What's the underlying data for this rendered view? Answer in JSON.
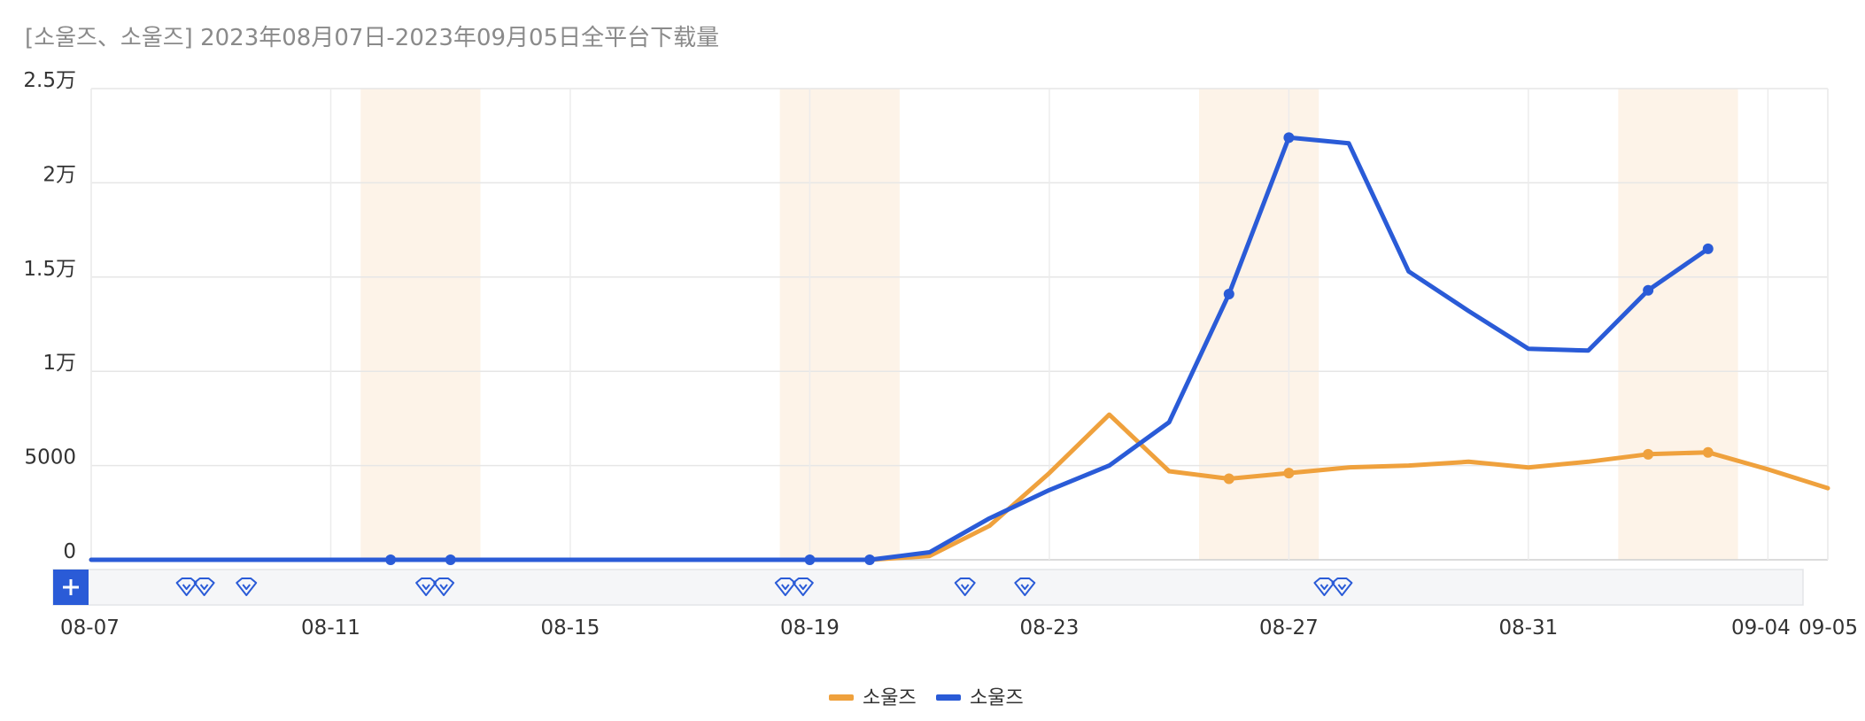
{
  "chart_data": {
    "type": "line",
    "title": "[소울즈、소울즈] 2023年08月07日-2023年09月05日全平台下载量",
    "xlabel": "",
    "ylabel": "",
    "x": [
      "08-07",
      "08-08",
      "08-09",
      "08-10",
      "08-11",
      "08-12",
      "08-13",
      "08-14",
      "08-15",
      "08-16",
      "08-17",
      "08-18",
      "08-19",
      "08-20",
      "08-21",
      "08-22",
      "08-23",
      "08-24",
      "08-25",
      "08-26",
      "08-27",
      "08-28",
      "08-29",
      "08-30",
      "08-31",
      "09-01",
      "09-02",
      "09-03",
      "09-04",
      "09-05"
    ],
    "x_tick_labels": [
      "08-07",
      "08-11",
      "08-15",
      "08-19",
      "08-23",
      "08-27",
      "08-31",
      "09-04",
      "09-05"
    ],
    "y_tick_labels": [
      "0",
      "5000",
      "1万",
      "1.5万",
      "2万",
      "2.5万"
    ],
    "y_tick_values": [
      0,
      5000,
      10000,
      15000,
      20000,
      25000
    ],
    "ylim": [
      0,
      25000
    ],
    "grid": true,
    "legend_position": "bottom-center",
    "weekend_bands": [
      [
        "08-12",
        "08-13"
      ],
      [
        "08-19",
        "08-20"
      ],
      [
        "08-26",
        "08-27"
      ],
      [
        "09-02",
        "09-03"
      ]
    ],
    "event_markers": [
      "08-08",
      "08-08",
      "08-09",
      "08-12",
      "08-12",
      "08-18",
      "08-18",
      "08-21",
      "08-22",
      "08-27",
      "08-27"
    ],
    "series": [
      {
        "name": "소울즈",
        "color": "#EFA13D",
        "values": [
          0,
          0,
          0,
          0,
          0,
          0,
          0,
          0,
          0,
          0,
          0,
          0,
          0,
          0,
          200,
          1800,
          4600,
          7700,
          4700,
          4300,
          4600,
          4900,
          5000,
          5200,
          4900,
          5200,
          5600,
          5700,
          4800,
          3800
        ],
        "dot_indices": [
          19,
          20,
          26,
          27
        ]
      },
      {
        "name": "소울즈",
        "color": "#2A5BD7",
        "values": [
          0,
          0,
          0,
          0,
          0,
          0,
          0,
          0,
          0,
          0,
          0,
          0,
          0,
          0,
          400,
          2200,
          3700,
          5000,
          7300,
          14100,
          22400,
          22100,
          15300,
          13200,
          11200,
          11100,
          14300,
          16500,
          null,
          null
        ],
        "dot_indices": [
          5,
          6,
          12,
          13,
          19,
          20,
          26,
          27
        ]
      }
    ]
  }
}
